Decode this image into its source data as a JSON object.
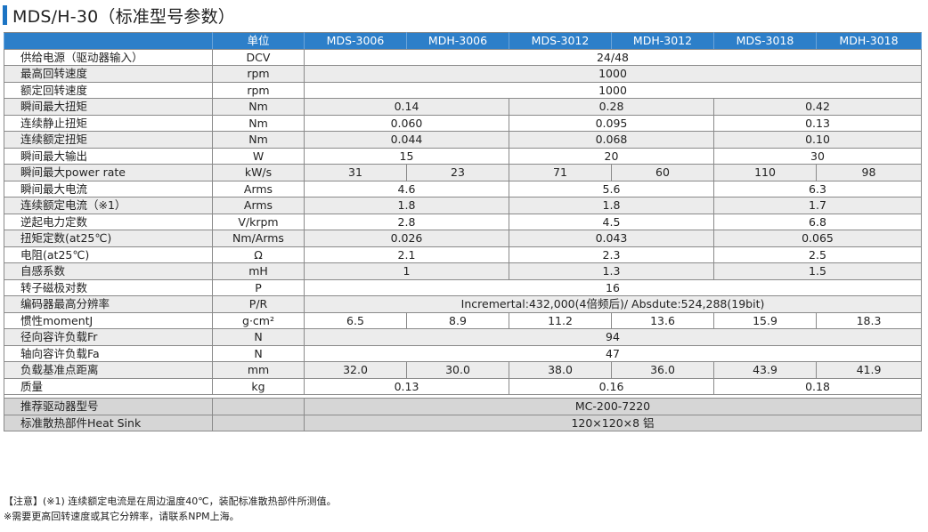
{
  "page_title": "MDS/H-30（标准型号参数）",
  "header": {
    "col0": "",
    "unit": "单位",
    "models": [
      "MDS-3006",
      "MDH-3006",
      "MDS-3012",
      "MDH-3012",
      "MDS-3018",
      "MDH-3018"
    ]
  },
  "rows": [
    {
      "label": "供给电源（驱动器输入）",
      "unit": "DCV",
      "values": [
        "24/48"
      ],
      "spans": [
        6
      ]
    },
    {
      "label": "最高回转速度",
      "unit": "rpm",
      "values": [
        "1000"
      ],
      "spans": [
        6
      ]
    },
    {
      "label": "额定回转速度",
      "unit": "rpm",
      "values": [
        "1000"
      ],
      "spans": [
        6
      ]
    },
    {
      "label": "瞬间最大扭矩",
      "unit": "Nm",
      "values": [
        "0.14",
        "0.28",
        "0.42"
      ],
      "spans": [
        2,
        2,
        2
      ]
    },
    {
      "label": "连续静止扭矩",
      "unit": "Nm",
      "values": [
        "0.060",
        "0.095",
        "0.13"
      ],
      "spans": [
        2,
        2,
        2
      ]
    },
    {
      "label": "连续额定扭矩",
      "unit": "Nm",
      "values": [
        "0.044",
        "0.068",
        "0.10"
      ],
      "spans": [
        2,
        2,
        2
      ]
    },
    {
      "label": "瞬间最大输出",
      "unit": "W",
      "values": [
        "15",
        "20",
        "30"
      ],
      "spans": [
        2,
        2,
        2
      ]
    },
    {
      "label": "瞬间最大power rate",
      "unit": "kW/s",
      "values": [
        "31",
        "23",
        "71",
        "60",
        "110",
        "98"
      ],
      "spans": [
        1,
        1,
        1,
        1,
        1,
        1
      ]
    },
    {
      "label": "瞬间最大电流",
      "unit": "Arms",
      "values": [
        "4.6",
        "5.6",
        "6.3"
      ],
      "spans": [
        2,
        2,
        2
      ]
    },
    {
      "label": "连续额定电流（※1）",
      "unit": "Arms",
      "values": [
        "1.8",
        "1.8",
        "1.7"
      ],
      "spans": [
        2,
        2,
        2
      ]
    },
    {
      "label": "逆起电力定数",
      "unit": "V/krpm",
      "values": [
        "2.8",
        "4.5",
        "6.8"
      ],
      "spans": [
        2,
        2,
        2
      ]
    },
    {
      "label": "扭矩定数(at25℃)",
      "unit": "Nm/Arms",
      "values": [
        "0.026",
        "0.043",
        "0.065"
      ],
      "spans": [
        2,
        2,
        2
      ]
    },
    {
      "label": "电阻(at25℃)",
      "unit": "Ω",
      "values": [
        "2.1",
        "2.3",
        "2.5"
      ],
      "spans": [
        2,
        2,
        2
      ]
    },
    {
      "label": "自感系数",
      "unit": "mH",
      "values": [
        "1",
        "1.3",
        "1.5"
      ],
      "spans": [
        2,
        2,
        2
      ]
    },
    {
      "label": "转子磁极对数",
      "unit": "P",
      "values": [
        "16"
      ],
      "spans": [
        6
      ]
    },
    {
      "label": "编码器最高分辨率",
      "unit": "P/R",
      "values": [
        "Incremertal:432,000(4倍频后)/ Absdute:524,288(19bit)"
      ],
      "spans": [
        6
      ]
    },
    {
      "label": "惯性momentJ",
      "unit": "g·cm²",
      "values": [
        "6.5",
        "8.9",
        "11.2",
        "13.6",
        "15.9",
        "18.3"
      ],
      "spans": [
        1,
        1,
        1,
        1,
        1,
        1
      ]
    },
    {
      "label": "径向容许负载Fr",
      "unit": "N",
      "values": [
        "94"
      ],
      "spans": [
        6
      ]
    },
    {
      "label": "轴向容许负载Fa",
      "unit": "N",
      "values": [
        "47"
      ],
      "spans": [
        6
      ]
    },
    {
      "label": "负载基准点距离",
      "unit": "mm",
      "values": [
        "32.0",
        "30.0",
        "38.0",
        "36.0",
        "43.9",
        "41.9"
      ],
      "spans": [
        1,
        1,
        1,
        1,
        1,
        1
      ]
    },
    {
      "label": "质量",
      "unit": "kg",
      "values": [
        "0.13",
        "0.16",
        "0.18"
      ],
      "spans": [
        2,
        2,
        2
      ]
    }
  ],
  "footer_rows": [
    {
      "label": "推荐驱动器型号",
      "unit": "",
      "values": [
        "MC-200-7220"
      ],
      "spans": [
        6
      ]
    },
    {
      "label": "标准散热部件Heat Sink",
      "unit": "",
      "values": [
        "120×120×8 铝"
      ],
      "spans": [
        6
      ]
    }
  ],
  "notes": [
    "【注意】(※1) 连续额定电流是在周边温度40℃，装配标准散热部件所测值。",
    "※需要更高回转速度或其它分辨率，请联系NPM上海。"
  ],
  "colors": {
    "header_bg": "#2d7fc9",
    "accent_bar": "#1c74c4",
    "alt_row": "#ececec",
    "footer_row": "#d6d6d6"
  }
}
